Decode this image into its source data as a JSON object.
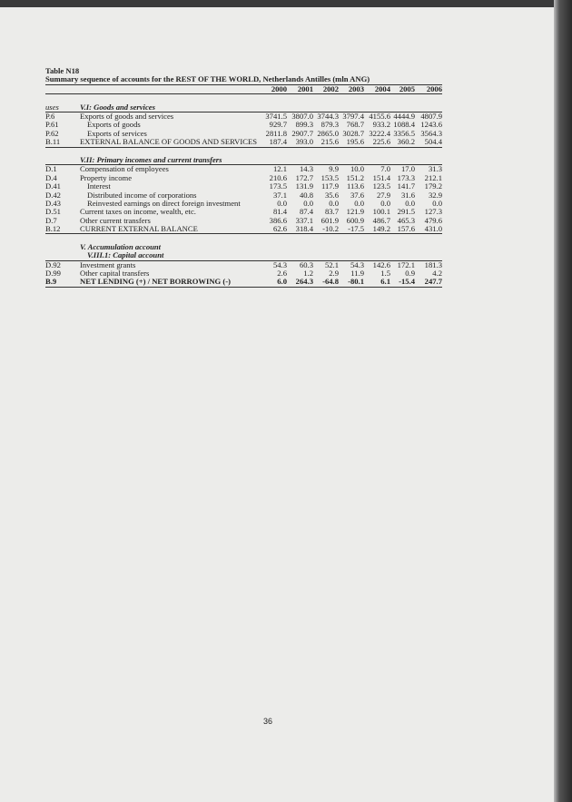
{
  "table": {
    "title": "Table N18",
    "subtitle": "Summary sequence of accounts for the REST OF THE WORLD, Netherlands Antilles (mln ANG)",
    "years": [
      "2000",
      "2001",
      "2002",
      "2003",
      "2004",
      "2005",
      "2006"
    ],
    "uses_label": "uses",
    "sections": [
      {
        "headers": [
          "V.I: Goods and services"
        ],
        "rows": [
          {
            "code": "P.6",
            "label": "Exports of goods and services",
            "indent": false,
            "values": [
              "3741.5",
              "3807.0",
              "3744.3",
              "3797.4",
              "4155.6",
              "4444.9",
              "4807.9"
            ]
          },
          {
            "code": "P.61",
            "label": "Exports of goods",
            "indent": true,
            "values": [
              "929.7",
              "899.3",
              "879.3",
              "768.7",
              "933.2",
              "1088.4",
              "1243.6"
            ]
          },
          {
            "code": "P.62",
            "label": "Exports of services",
            "indent": true,
            "values": [
              "2811.8",
              "2907.7",
              "2865.0",
              "3028.7",
              "3222.4",
              "3356.5",
              "3564.3"
            ]
          },
          {
            "code": "B.11",
            "label": "EXTERNAL BALANCE OF GOODS AND SERVICES",
            "indent": false,
            "values": [
              "187.4",
              "393.0",
              "215.6",
              "195.6",
              "225.6",
              "360.2",
              "504.4"
            ]
          }
        ]
      },
      {
        "headers": [
          "V.II: Primary incomes and current transfers"
        ],
        "rows": [
          {
            "code": "D.1",
            "label": "Compensation of employees",
            "indent": false,
            "values": [
              "12.1",
              "14.3",
              "9.9",
              "10.0",
              "7.0",
              "17.0",
              "31.3"
            ]
          },
          {
            "code": "D.4",
            "label": "Property income",
            "indent": false,
            "values": [
              "210.6",
              "172.7",
              "153.5",
              "151.2",
              "151.4",
              "173.3",
              "212.1"
            ]
          },
          {
            "code": "D.41",
            "label": "Interest",
            "indent": true,
            "values": [
              "173.5",
              "131.9",
              "117.9",
              "113.6",
              "123.5",
              "141.7",
              "179.2"
            ]
          },
          {
            "code": "D.42",
            "label": "Distributed income of corporations",
            "indent": true,
            "values": [
              "37.1",
              "40.8",
              "35.6",
              "37.6",
              "27.9",
              "31.6",
              "32.9"
            ]
          },
          {
            "code": "D.43",
            "label": "Reinvested earnings on direct foreign investment",
            "indent": true,
            "values": [
              "0.0",
              "0.0",
              "0.0",
              "0.0",
              "0.0",
              "0.0",
              "0.0"
            ]
          },
          {
            "code": "D.51",
            "label": "Current taxes on income, wealth, etc.",
            "indent": false,
            "values": [
              "81.4",
              "87.4",
              "83.7",
              "121.9",
              "100.1",
              "291.5",
              "127.3"
            ]
          },
          {
            "code": "D.7",
            "label": "Other current transfers",
            "indent": false,
            "values": [
              "386.6",
              "337.1",
              "601.9",
              "600.9",
              "486.7",
              "465.3",
              "479.6"
            ]
          },
          {
            "code": "B.12",
            "label": "CURRENT EXTERNAL BALANCE",
            "indent": false,
            "values": [
              "62.6",
              "318.4",
              "-10.2",
              "-17.5",
              "149.2",
              "157.6",
              "431.0"
            ]
          }
        ]
      },
      {
        "headers": [
          "V. Accumulation account",
          "V.III.1: Capital account"
        ],
        "rows": [
          {
            "code": "D.92",
            "label": "Investment grants",
            "indent": false,
            "values": [
              "54.3",
              "60.3",
              "52.1",
              "54.3",
              "142.6",
              "172.1",
              "181.3"
            ]
          },
          {
            "code": "D.99",
            "label": "Other capital transfers",
            "indent": false,
            "values": [
              "2.6",
              "1.2",
              "2.9",
              "11.9",
              "1.5",
              "0.9",
              "4.2"
            ]
          },
          {
            "code": "B.9",
            "label": "NET LENDING (+) / NET BORROWING (-)",
            "indent": false,
            "bold": true,
            "values": [
              "6.0",
              "264.3",
              "-64.8",
              "-80.1",
              "6.1",
              "-15.4",
              "247.7"
            ]
          }
        ]
      }
    ]
  },
  "page_number": "36"
}
